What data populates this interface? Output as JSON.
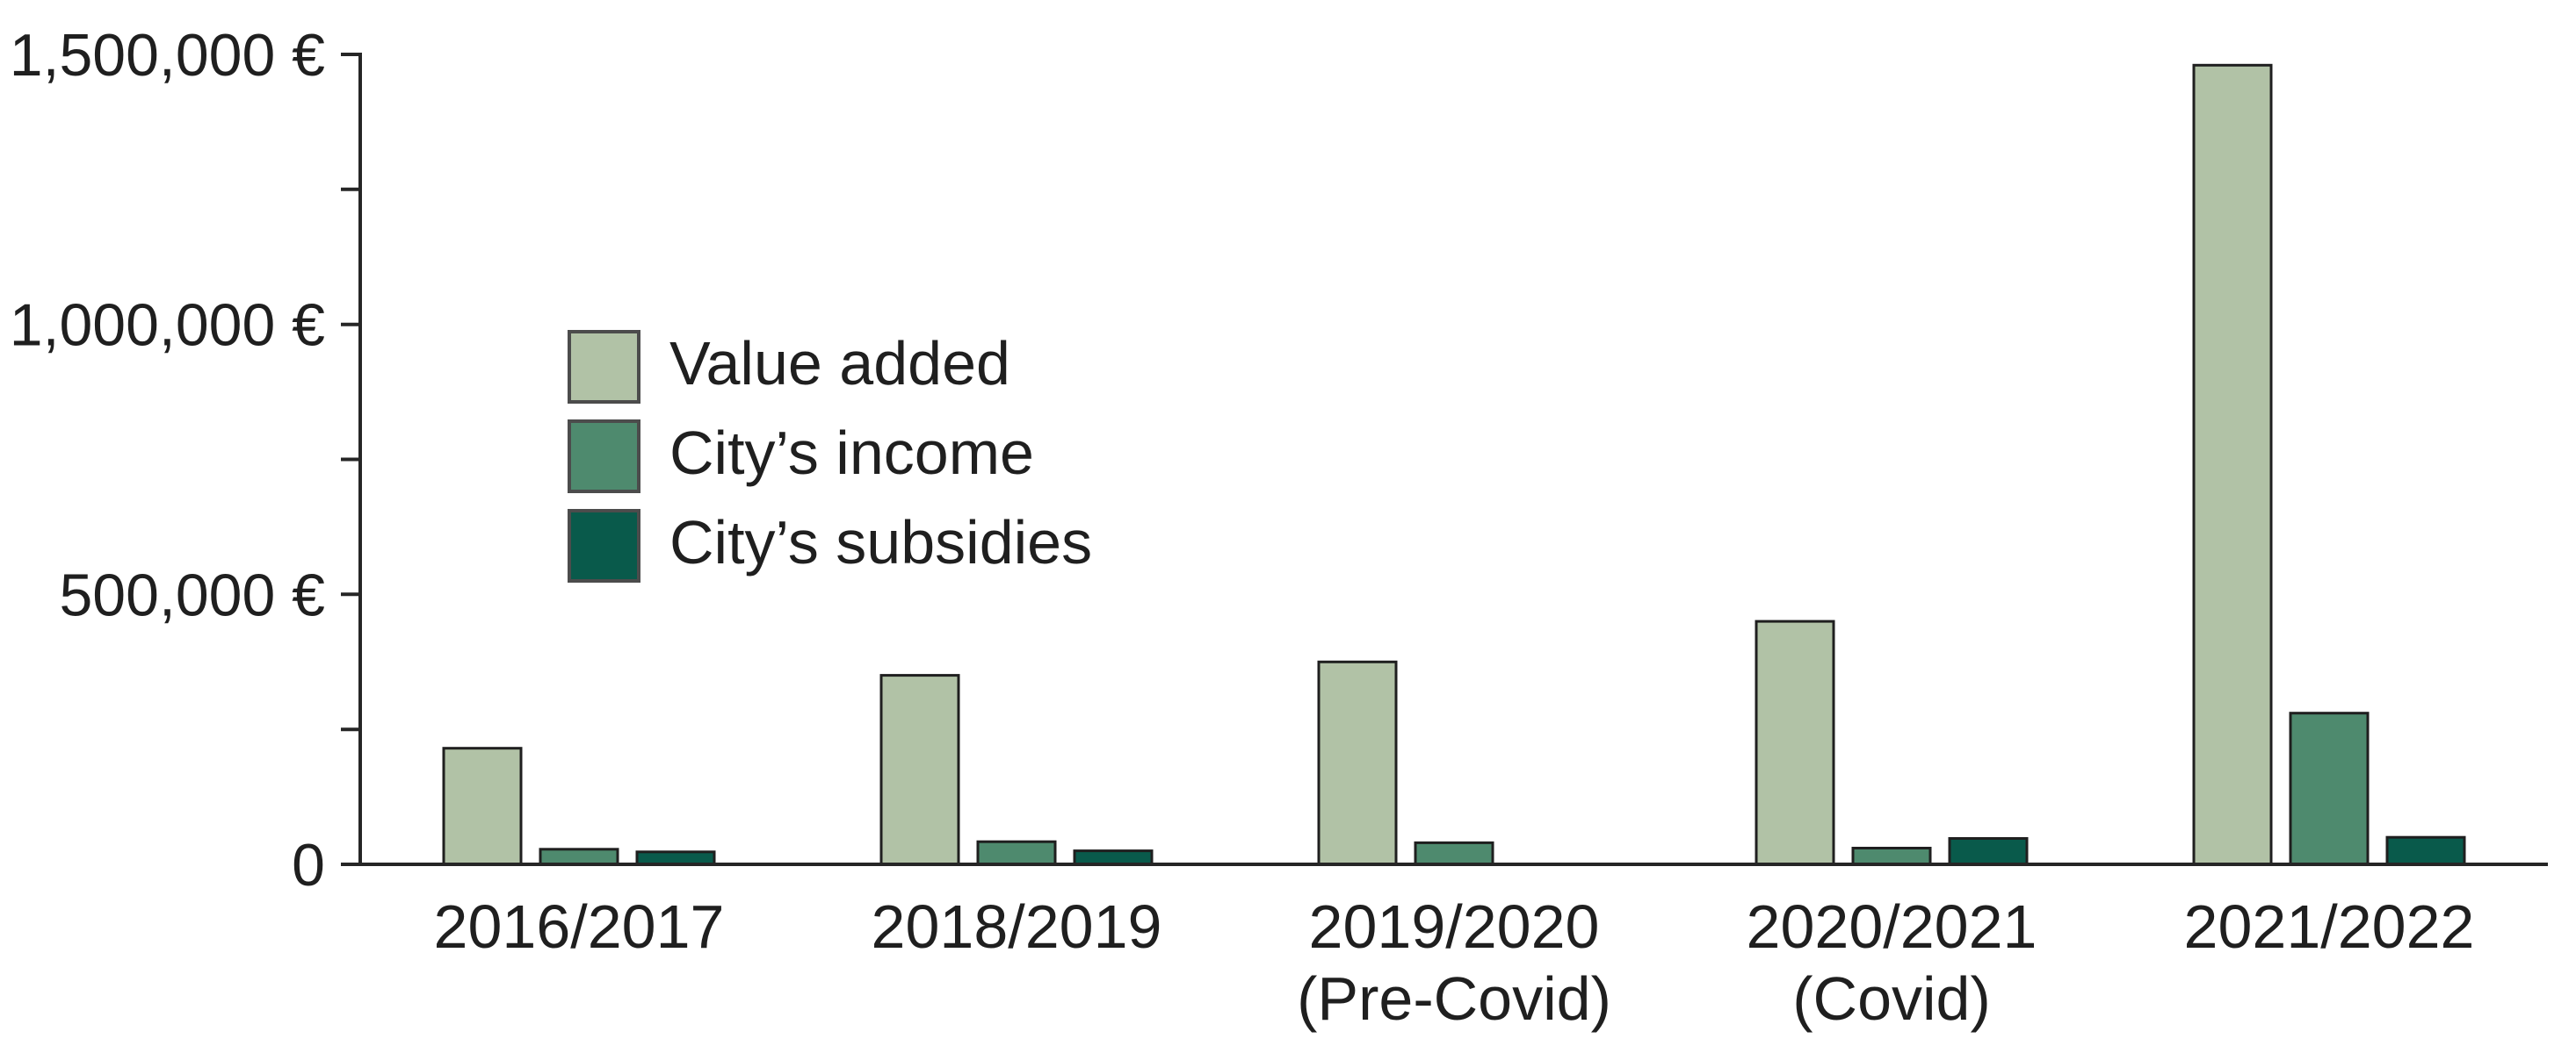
{
  "page": {
    "background": "#ffffff"
  },
  "chart_data": {
    "type": "bar",
    "title": "",
    "categories": [
      "2016/2017",
      "2018/2019",
      "2019/2020",
      "2020/2021",
      "2021/2022"
    ],
    "category_sublabels": [
      "",
      "",
      "(Pre-Covid)",
      "(Covid)",
      ""
    ],
    "series": [
      {
        "name": "Value added",
        "color": "#b1c2a6",
        "values": [
          215000,
          350000,
          375000,
          450000,
          1480000
        ]
      },
      {
        "name": "City’s income",
        "color": "#4e8a6e",
        "values": [
          28000,
          42000,
          40000,
          30000,
          280000
        ]
      },
      {
        "name": "City’s subsidies",
        "color": "#095a4b",
        "values": [
          23000,
          25000,
          0,
          48000,
          50000
        ]
      }
    ],
    "y_axis": {
      "min": 0,
      "max": 1500000,
      "minor_tick_step": 250000,
      "currency": "€",
      "labeled_ticks": [
        {
          "value": 0,
          "label": "0"
        },
        {
          "value": 500000,
          "label": "500,000 €"
        },
        {
          "value": 1000000,
          "label": "1,000,000 €"
        },
        {
          "value": 1500000,
          "label": "1,500,000 €"
        }
      ]
    },
    "xlabel": "",
    "ylabel": "",
    "legend_position": "upper-left-inside",
    "grid": false,
    "axis_color": "#262626",
    "bar_border_color": "#1f1f1f",
    "legend_swatch_border_color": "#4c4c4c",
    "text_color": "#1f1f1f"
  }
}
